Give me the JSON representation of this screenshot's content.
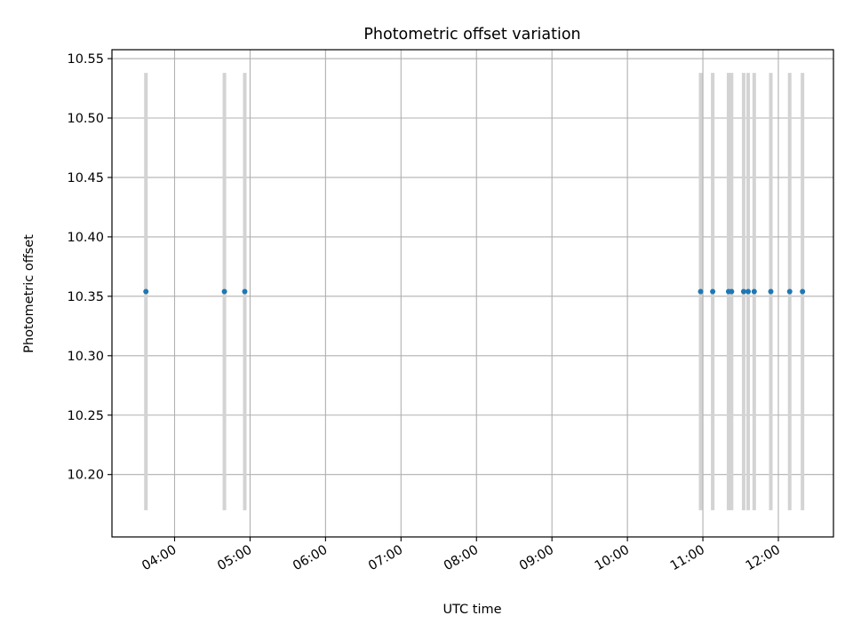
{
  "chart_data": {
    "type": "scatter",
    "title": "Photometric offset variation",
    "xlabel": "UTC time",
    "ylabel": "Photometric offset",
    "x_tick_labels": [
      "04:00",
      "05:00",
      "06:00",
      "07:00",
      "08:00",
      "09:00",
      "10:00",
      "11:00",
      "12:00"
    ],
    "x_tick_hours": [
      4,
      5,
      6,
      7,
      8,
      9,
      10,
      11,
      12
    ],
    "y_tick_labels": [
      "10.20",
      "10.25",
      "10.30",
      "10.35",
      "10.40",
      "10.45",
      "10.50",
      "10.55"
    ],
    "y_ticks": [
      10.2,
      10.25,
      10.3,
      10.35,
      10.4,
      10.45,
      10.5,
      10.55
    ],
    "xlim_hours": [
      3.17,
      12.73
    ],
    "ylim": [
      10.1475,
      10.5575
    ],
    "grid": true,
    "series": [
      {
        "x_hours": [
          3.62,
          4.66,
          4.93,
          10.97,
          11.13,
          11.34,
          11.38,
          11.54,
          11.6,
          11.68,
          11.9,
          12.15,
          12.32
        ],
        "y": [
          10.354,
          10.354,
          10.354,
          10.354,
          10.354,
          10.354,
          10.354,
          10.354,
          10.354,
          10.354,
          10.354,
          10.354,
          10.354
        ],
        "y_err_low": [
          10.17,
          10.17,
          10.17,
          10.17,
          10.17,
          10.17,
          10.17,
          10.17,
          10.17,
          10.17,
          10.17,
          10.17,
          10.17
        ],
        "y_err_high": [
          10.538,
          10.538,
          10.538,
          10.538,
          10.538,
          10.538,
          10.538,
          10.538,
          10.538,
          10.538,
          10.538,
          10.538,
          10.538
        ]
      }
    ],
    "colors": {
      "point": "#1f77b4",
      "errorbar": "#d3d3d3",
      "grid": "#b0b0b0",
      "axes": "#000000"
    }
  }
}
